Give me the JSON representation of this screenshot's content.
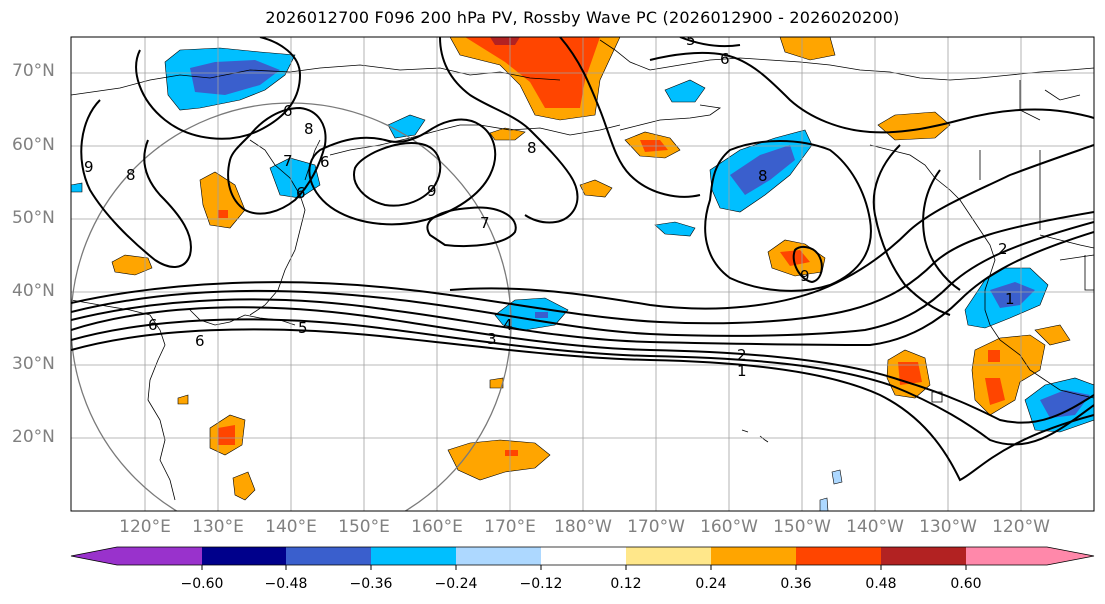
{
  "title": "2026012700 F096 200 hPa PV, Rossby Wave PC (2026012900 - 2026020200)",
  "latitude_labels": [
    "70°N",
    "60°N",
    "50°N",
    "40°N",
    "30°N",
    "20°N"
  ],
  "longitude_labels": [
    "120°E",
    "130°E",
    "140°E",
    "150°E",
    "160°E",
    "170°E",
    "180°W",
    "170°W",
    "160°W",
    "150°W",
    "140°W",
    "130°W",
    "120°W"
  ],
  "contour_labels": [
    "6",
    "6",
    "6",
    "8",
    "7",
    "9",
    "8",
    "6",
    "9",
    "7",
    "8",
    "5",
    "6",
    "8",
    "9",
    "2",
    "1",
    "3",
    "4",
    "5",
    "2",
    "1",
    "6"
  ],
  "colorbar": {
    "tick_labels": [
      "−0.60",
      "−0.48",
      "−0.36",
      "−0.24",
      "−0.12",
      "0.12",
      "0.24",
      "0.36",
      "0.48",
      "0.60"
    ],
    "colors": [
      "#9932cc",
      "#00008b",
      "#3a5fcd",
      "#00bfff",
      "#add8ff",
      "#ffffff",
      "#ffe78a",
      "#ffa500",
      "#ff4500",
      "#b22222",
      "#ff88aa"
    ]
  }
}
